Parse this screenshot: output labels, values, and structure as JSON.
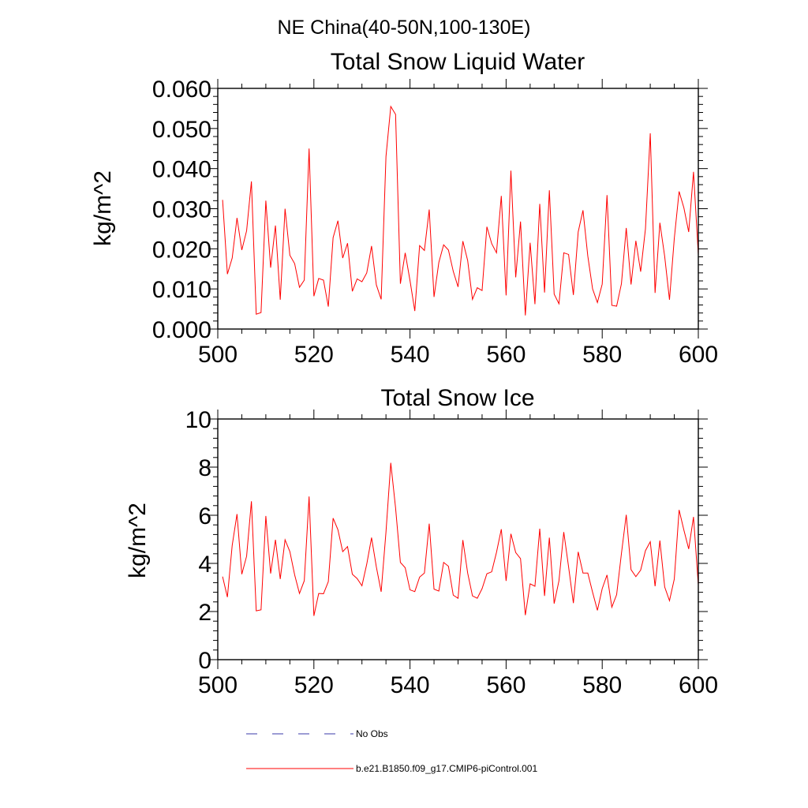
{
  "suptitle": "NE China(40-50N,100-130E)",
  "colors": {
    "series": "#ff0000",
    "no_obs": "#3a3aa8",
    "axis": "#000000"
  },
  "legend": {
    "items": [
      {
        "label": "No Obs",
        "style": "dashed",
        "color": "#3a3aa8"
      },
      {
        "label": "b.e21.B1850.f09_g17.CMIP6-piControl.001",
        "style": "solid",
        "color": "#ff0000"
      }
    ]
  },
  "chart_data": [
    {
      "type": "line",
      "title": "Total Snow Liquid Water",
      "xlabel": "",
      "ylabel": "kg/m^2",
      "xlim": [
        500,
        600
      ],
      "ylim": [
        0.0,
        0.06
      ],
      "xticks": [
        500,
        520,
        540,
        560,
        580,
        600
      ],
      "xtick_labels": [
        "500",
        "520",
        "540",
        "560",
        "580",
        "600"
      ],
      "yticks": [
        0.0,
        0.01,
        0.02,
        0.03,
        0.04,
        0.05,
        0.06
      ],
      "ytick_labels": [
        "0.000",
        "0.010",
        "0.020",
        "0.030",
        "0.040",
        "0.050",
        "0.060"
      ],
      "series": [
        {
          "name": "b.e21.B1850.f09_g17.CMIP6-piControl.001",
          "x_start": 501,
          "values": [
            0.0322,
            0.0137,
            0.0177,
            0.0277,
            0.0197,
            0.0245,
            0.0368,
            0.0037,
            0.0041,
            0.032,
            0.0153,
            0.0258,
            0.0073,
            0.03,
            0.0184,
            0.0163,
            0.0104,
            0.0122,
            0.045,
            0.0082,
            0.0126,
            0.0122,
            0.0056,
            0.0228,
            0.027,
            0.0177,
            0.0214,
            0.0094,
            0.0125,
            0.0118,
            0.014,
            0.0207,
            0.011,
            0.0074,
            0.043,
            0.0555,
            0.0535,
            0.0113,
            0.019,
            0.0121,
            0.0045,
            0.0208,
            0.0196,
            0.0298,
            0.008,
            0.0166,
            0.021,
            0.0197,
            0.0144,
            0.0105,
            0.0219,
            0.0171,
            0.0074,
            0.0103,
            0.0096,
            0.0255,
            0.0213,
            0.019,
            0.0332,
            0.0084,
            0.0395,
            0.0129,
            0.0268,
            0.0034,
            0.0215,
            0.0062,
            0.0312,
            0.0091,
            0.0346,
            0.0087,
            0.0063,
            0.019,
            0.0186,
            0.0085,
            0.0242,
            0.0296,
            0.0182,
            0.01,
            0.0066,
            0.0112,
            0.0334,
            0.0059,
            0.0057,
            0.0113,
            0.0252,
            0.0111,
            0.022,
            0.0143,
            0.025,
            0.0488,
            0.009,
            0.0265,
            0.0181,
            0.0073,
            0.0226,
            0.0343,
            0.0302,
            0.0242,
            0.0392,
            0.0185
          ]
        }
      ]
    },
    {
      "type": "line",
      "title": "Total Snow Ice",
      "xlabel": "",
      "ylabel": "kg/m^2",
      "xlim": [
        500,
        600
      ],
      "ylim": [
        0,
        10
      ],
      "xticks": [
        500,
        520,
        540,
        560,
        580,
        600
      ],
      "xtick_labels": [
        "500",
        "520",
        "540",
        "560",
        "580",
        "600"
      ],
      "yticks": [
        0,
        2,
        4,
        6,
        8,
        10
      ],
      "ytick_labels": [
        "0",
        "2",
        "4",
        "6",
        "8",
        "10"
      ],
      "series": [
        {
          "name": "b.e21.B1850.f09_g17.CMIP6-piControl.001",
          "x_start": 501,
          "values": [
            3.45,
            2.6,
            4.75,
            6.05,
            3.55,
            4.3,
            6.58,
            2.03,
            2.07,
            5.97,
            3.58,
            4.98,
            3.35,
            4.98,
            4.49,
            3.52,
            2.75,
            3.28,
            6.78,
            1.82,
            2.75,
            2.74,
            3.24,
            5.88,
            5.4,
            4.49,
            4.7,
            3.55,
            3.37,
            3.07,
            3.97,
            5.07,
            3.85,
            2.82,
            5.3,
            8.18,
            6.3,
            4.04,
            3.82,
            2.9,
            2.83,
            3.43,
            3.6,
            5.65,
            2.93,
            2.85,
            4.04,
            3.88,
            2.68,
            2.55,
            4.97,
            3.6,
            2.65,
            2.55,
            2.95,
            3.57,
            3.65,
            4.46,
            5.42,
            3.27,
            5.23,
            4.45,
            4.2,
            1.85,
            3.15,
            3.05,
            5.44,
            2.65,
            5.07,
            2.33,
            3.28,
            5.3,
            3.86,
            2.35,
            4.48,
            3.6,
            3.6,
            2.8,
            2.05,
            2.95,
            3.52,
            2.18,
            2.7,
            4.41,
            6.02,
            3.74,
            3.45,
            3.72,
            4.53,
            4.9,
            3.05,
            4.95,
            3.02,
            2.45,
            3.35,
            6.22,
            5.38,
            4.6,
            5.93,
            3.1
          ]
        }
      ]
    }
  ]
}
